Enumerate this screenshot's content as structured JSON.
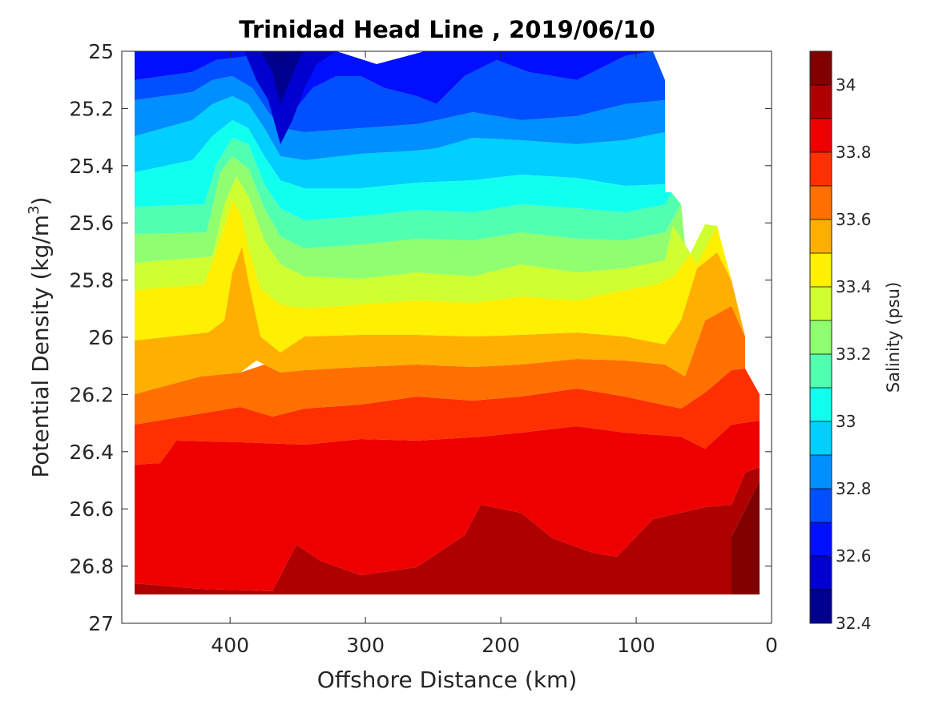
{
  "chart_data": {
    "type": "heatmap",
    "title": "Trinidad Head Line , 2019/06/10",
    "xlabel": "Offshore Distance (km)",
    "ylabel_main": "Potential Density (kg/m",
    "ylabel_sup": "3",
    "ylabel_close": ")",
    "colorbar_label": "Salinity (psu)",
    "x_reversed": true,
    "y_reversed": true,
    "xlim": [
      0,
      480
    ],
    "ylim": [
      25,
      27
    ],
    "x_ticks": [
      400,
      300,
      200,
      100,
      0
    ],
    "x_tick_labels": [
      "400",
      "300",
      "200",
      "100",
      "0"
    ],
    "y_ticks": [
      25,
      25.2,
      25.4,
      25.6,
      25.8,
      26,
      26.2,
      26.4,
      26.6,
      26.8,
      27
    ],
    "y_tick_labels": [
      "25",
      "25.2",
      "25.4",
      "25.6",
      "25.8",
      "26",
      "26.2",
      "26.4",
      "26.6",
      "26.8",
      "27"
    ],
    "colorbar_range": [
      32.4,
      34.1
    ],
    "colorbar_ticks": [
      32.4,
      32.6,
      32.8,
      33,
      33.2,
      33.4,
      33.6,
      33.8,
      34
    ],
    "colorbar_tick_labels": [
      "32.4",
      "32.6",
      "32.8",
      "33",
      "33.2",
      "33.4",
      "33.6",
      "33.8",
      "34"
    ],
    "contour_levels": [
      32.4,
      32.5,
      32.6,
      32.7,
      32.8,
      32.9,
      33.0,
      33.1,
      33.2,
      33.3,
      33.4,
      33.5,
      33.6,
      33.7,
      33.8,
      33.9,
      34.0,
      34.1
    ],
    "level_colors": [
      "#00008f",
      "#0000cf",
      "#0010ff",
      "#0050ff",
      "#008fff",
      "#00cfff",
      "#10ffef",
      "#50ffaf",
      "#8fff70",
      "#cfff30",
      "#ffef00",
      "#ffaf00",
      "#ff7000",
      "#ff3000",
      "#ef0000",
      "#af0000",
      "#800000"
    ],
    "x": [
      480,
      460,
      440,
      420,
      410,
      400,
      390,
      380,
      370,
      360,
      340,
      320,
      300,
      280,
      260,
      240,
      220,
      200,
      180,
      160,
      140,
      120,
      100,
      80
    ],
    "bottom_depth_sigma": 26.9,
    "salinity_isopycnal_sigma": [
      25.0,
      25.2,
      25.4,
      25.6,
      25.8,
      26.0,
      26.2,
      26.4,
      26.6,
      26.8
    ],
    "salinity_at_400km": [
      32.75,
      32.95,
      33.2,
      33.45,
      33.65,
      33.72,
      33.85,
      33.95,
      34.0,
      34.03
    ],
    "salinity_at_370km": [
      32.5,
      32.6,
      32.75,
      32.95,
      33.2,
      33.45,
      33.75,
      33.95,
      34.0,
      34.05
    ],
    "salinity_at_200km": [
      32.85,
      32.95,
      33.1,
      33.25,
      33.45,
      33.65,
      33.83,
      33.95,
      34.02,
      34.08
    ],
    "salinity_at_50km": [
      null,
      null,
      null,
      33.55,
      33.6,
      33.7,
      33.82,
      33.95,
      34.05,
      34.07
    ]
  }
}
